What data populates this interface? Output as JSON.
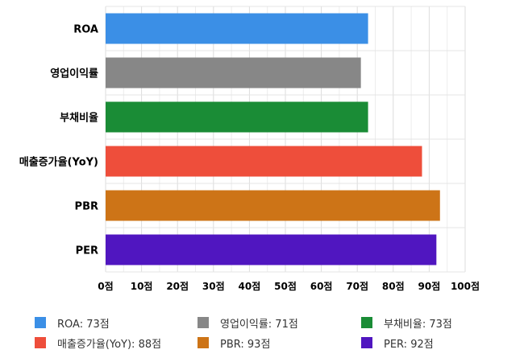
{
  "chart_data": {
    "type": "bar",
    "orientation": "horizontal",
    "categories": [
      "ROA",
      "영업이익률",
      "부채비율",
      "매출증가율(YoY)",
      "PBR",
      "PER"
    ],
    "values": [
      73,
      71,
      73,
      88,
      93,
      92
    ],
    "colors": [
      "#3b8fe6",
      "#878787",
      "#1a8c36",
      "#ee4e3b",
      "#cd7417",
      "#5016c0"
    ],
    "xlim": [
      0,
      100
    ],
    "xticks": [
      "0점",
      "10점",
      "20점",
      "30점",
      "40점",
      "50점",
      "60점",
      "70점",
      "80점",
      "90점",
      "100점"
    ],
    "grid": true,
    "legend": {
      "position": "bottom",
      "entries": [
        "ROA: 73점",
        "영업이익률: 71점",
        "부채비율: 73점",
        "매출증가율(YoY): 88점",
        "PBR: 93점",
        "PER: 92점"
      ]
    }
  }
}
